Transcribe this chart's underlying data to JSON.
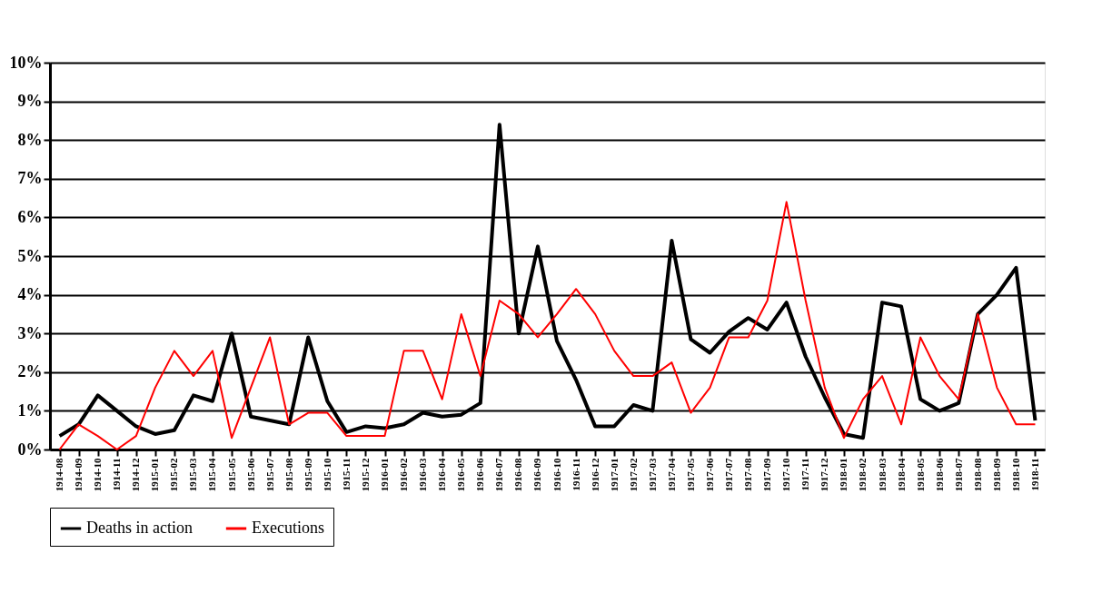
{
  "chart_data": {
    "type": "line",
    "categories": [
      "1914-08",
      "1914-09",
      "1914-10",
      "1914-11",
      "1914-12",
      "1915-01",
      "1915-02",
      "1915-03",
      "1915-04",
      "1915-05",
      "1915-06",
      "1915-07",
      "1915-08",
      "1915-09",
      "1915-10",
      "1915-11",
      "1915-12",
      "1916-01",
      "1916-02",
      "1916-03",
      "1916-04",
      "1916-05",
      "1916-06",
      "1916-07",
      "1916-08",
      "1916-09",
      "1916-10",
      "1916-11",
      "1916-12",
      "1917-01",
      "1917-02",
      "1917-03",
      "1917-04",
      "1917-05",
      "1917-06",
      "1917-07",
      "1917-08",
      "1917-09",
      "1917-10",
      "1917-11",
      "1917-12",
      "1918-01",
      "1918-02",
      "1918-03",
      "1918-04",
      "1918-05",
      "1918-06",
      "1918-07",
      "1918-08",
      "1918-09",
      "1918-10",
      "1918-11"
    ],
    "series": [
      {
        "name": "Deaths in action",
        "color": "#000000",
        "values": [
          0.35,
          0.65,
          1.4,
          1.0,
          0.6,
          0.4,
          0.5,
          1.4,
          1.25,
          3.0,
          0.85,
          0.75,
          0.65,
          2.9,
          1.25,
          0.45,
          0.6,
          0.55,
          0.65,
          0.95,
          0.85,
          0.9,
          1.2,
          8.4,
          3.0,
          5.25,
          2.8,
          1.8,
          0.6,
          0.6,
          1.15,
          1.0,
          5.4,
          2.85,
          2.5,
          3.05,
          3.4,
          3.1,
          3.8,
          2.4,
          1.35,
          0.4,
          0.3,
          3.8,
          3.7,
          1.3,
          1.0,
          1.2,
          3.5,
          4.0,
          4.7,
          0.75
        ]
      },
      {
        "name": "Executions",
        "color": "#ff0000",
        "values": [
          0,
          0.65,
          0.35,
          0,
          0.35,
          1.6,
          2.55,
          1.9,
          2.55,
          0.3,
          1.6,
          2.9,
          0.65,
          0.95,
          0.95,
          0.35,
          0.35,
          0.35,
          2.55,
          2.55,
          1.3,
          3.5,
          1.9,
          3.85,
          3.5,
          2.9,
          3.5,
          4.15,
          3.5,
          2.55,
          1.9,
          1.9,
          2.25,
          0.95,
          1.6,
          2.9,
          2.9,
          3.85,
          6.4,
          3.85,
          1.6,
          0.3,
          1.3,
          1.9,
          0.65,
          2.9,
          1.9,
          1.3,
          3.5,
          1.6,
          0.65,
          0.65
        ]
      }
    ],
    "ylim": [
      0,
      10
    ],
    "yticks": [
      {
        "value": 0,
        "label": "0%"
      },
      {
        "value": 1,
        "label": "1%"
      },
      {
        "value": 2,
        "label": "2%"
      },
      {
        "value": 3,
        "label": "3%"
      },
      {
        "value": 4,
        "label": "4%"
      },
      {
        "value": 5,
        "label": "5%"
      },
      {
        "value": 6,
        "label": "6%"
      },
      {
        "value": 7,
        "label": "7%"
      },
      {
        "value": 8,
        "label": "8%"
      },
      {
        "value": 9,
        "label": "9%"
      },
      {
        "value": 10,
        "label": "10%"
      }
    ],
    "grid": "y",
    "legend": "bottom",
    "marker": "none",
    "line_style": "solid"
  }
}
